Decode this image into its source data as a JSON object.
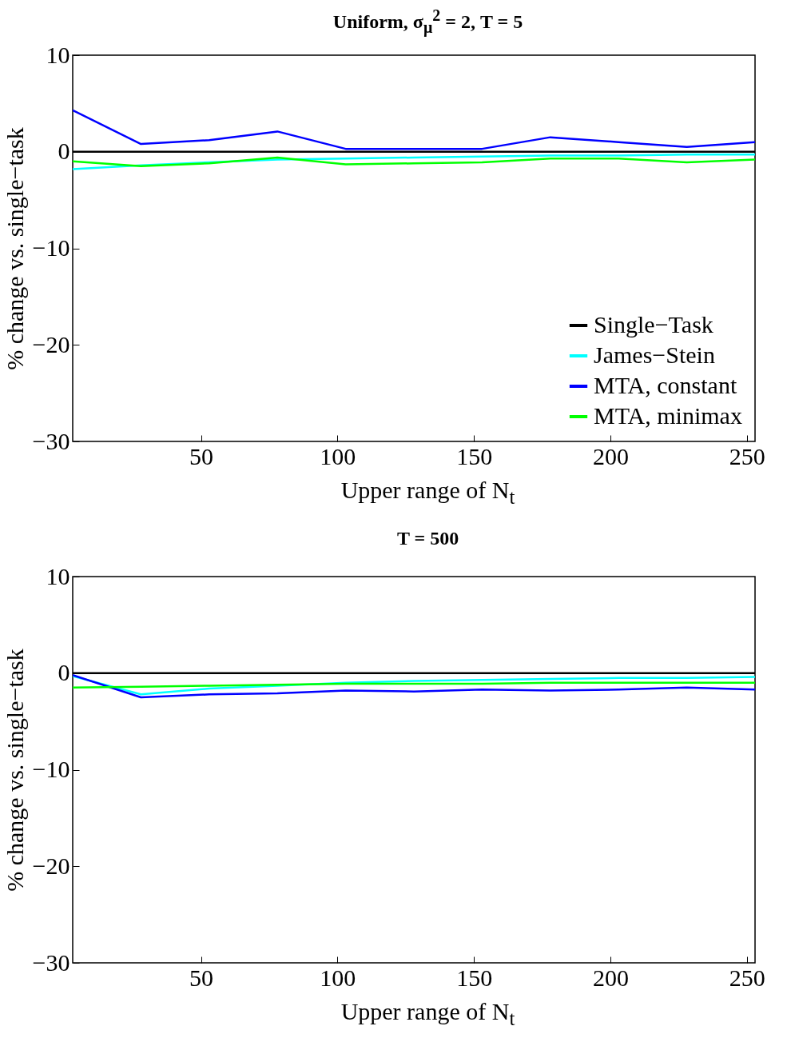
{
  "chart_data": [
    {
      "type": "line",
      "title": "Uniform, σ$_{μ}$$^{2}$ = 2, T = 5",
      "xlabel": "Upper range of N$_{t}$",
      "ylabel": "% change vs. single−task",
      "x": [
        3,
        28,
        53,
        78,
        103,
        128,
        153,
        178,
        203,
        228,
        253
      ],
      "xlim": [
        3,
        253
      ],
      "xticks": [
        50,
        100,
        150,
        200,
        250
      ],
      "ylim": [
        -30,
        10
      ],
      "yticks": [
        -30,
        -20,
        -10,
        0,
        10
      ],
      "grid": false,
      "legend": "bottom right",
      "series": [
        {
          "name": "Single−Task",
          "color": "#000000",
          "values": [
            0,
            0,
            0,
            0,
            0,
            0,
            0,
            0,
            0,
            0,
            0
          ]
        },
        {
          "name": "James−Stein",
          "color": "#00ffff",
          "values": [
            -1.8,
            -1.4,
            -1.1,
            -0.8,
            -0.7,
            -0.6,
            -0.5,
            -0.4,
            -0.4,
            -0.3,
            -0.3
          ]
        },
        {
          "name": "MTA, constant",
          "color": "#0000ff",
          "values": [
            4.3,
            0.8,
            1.2,
            2.1,
            0.3,
            0.3,
            0.3,
            1.5,
            1.0,
            0.5,
            1.0
          ]
        },
        {
          "name": "MTA, minimax",
          "color": "#00ff00",
          "values": [
            -1.0,
            -1.5,
            -1.2,
            -0.6,
            -1.3,
            -1.2,
            -1.1,
            -0.7,
            -0.7,
            -1.1,
            -0.8
          ]
        }
      ]
    },
    {
      "type": "line",
      "title": "T = 500",
      "xlabel": "Upper range of N$_{t}$",
      "ylabel": "% change vs. single−task",
      "x": [
        3,
        28,
        53,
        78,
        103,
        128,
        153,
        178,
        203,
        228,
        253
      ],
      "xlim": [
        3,
        253
      ],
      "xticks": [
        50,
        100,
        150,
        200,
        250
      ],
      "ylim": [
        -30,
        10
      ],
      "yticks": [
        -30,
        -20,
        -10,
        0,
        10
      ],
      "grid": false,
      "legend": false,
      "series": [
        {
          "color": "#000000",
          "values": [
            0,
            0,
            0,
            0,
            0,
            0,
            0,
            0,
            0,
            0,
            0
          ]
        },
        {
          "color": "#00ffff",
          "values": [
            -0.3,
            -2.2,
            -1.6,
            -1.3,
            -1.0,
            -0.8,
            -0.7,
            -0.6,
            -0.5,
            -0.5,
            -0.4
          ]
        },
        {
          "color": "#0000ff",
          "values": [
            -0.2,
            -2.5,
            -2.2,
            -2.1,
            -1.8,
            -1.9,
            -1.7,
            -1.8,
            -1.7,
            -1.5,
            -1.7
          ]
        },
        {
          "color": "#00ff00",
          "values": [
            -1.5,
            -1.4,
            -1.3,
            -1.2,
            -1.1,
            -1.1,
            -1.1,
            -1.0,
            -1.0,
            -1.0,
            -1.0
          ]
        }
      ]
    }
  ]
}
